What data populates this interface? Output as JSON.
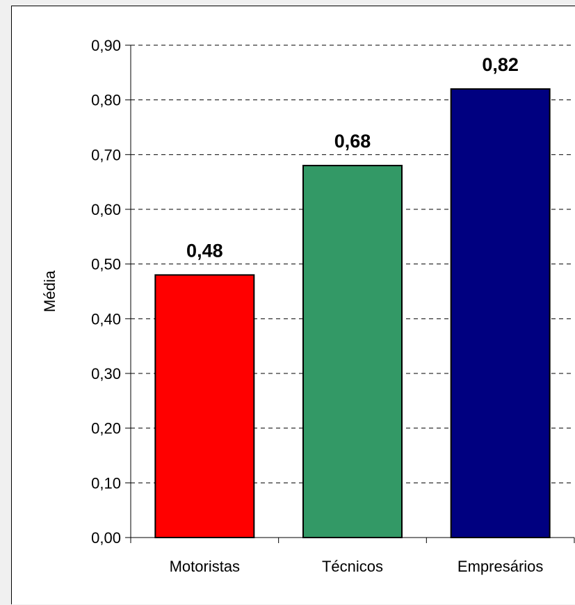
{
  "chart_data": {
    "type": "bar",
    "categories": [
      "Motoristas",
      "Técnicos",
      "Empresários"
    ],
    "values": [
      0.48,
      0.68,
      0.82
    ],
    "data_labels": [
      "0,48",
      "0,68",
      "0,82"
    ],
    "colors": [
      "#ff0000",
      "#339966",
      "#000080"
    ],
    "ylabel": "Média",
    "xlabel": "",
    "ylim": [
      0,
      0.9
    ],
    "yticks": [
      0.0,
      0.1,
      0.2,
      0.3,
      0.4,
      0.5,
      0.6,
      0.7,
      0.8,
      0.9
    ],
    "ytick_labels": [
      "0,00",
      "0,10",
      "0,20",
      "0,30",
      "0,40",
      "0,50",
      "0,60",
      "0,70",
      "0,80",
      "0,90"
    ],
    "grid": "horizontal-dashed",
    "legend": "none"
  }
}
